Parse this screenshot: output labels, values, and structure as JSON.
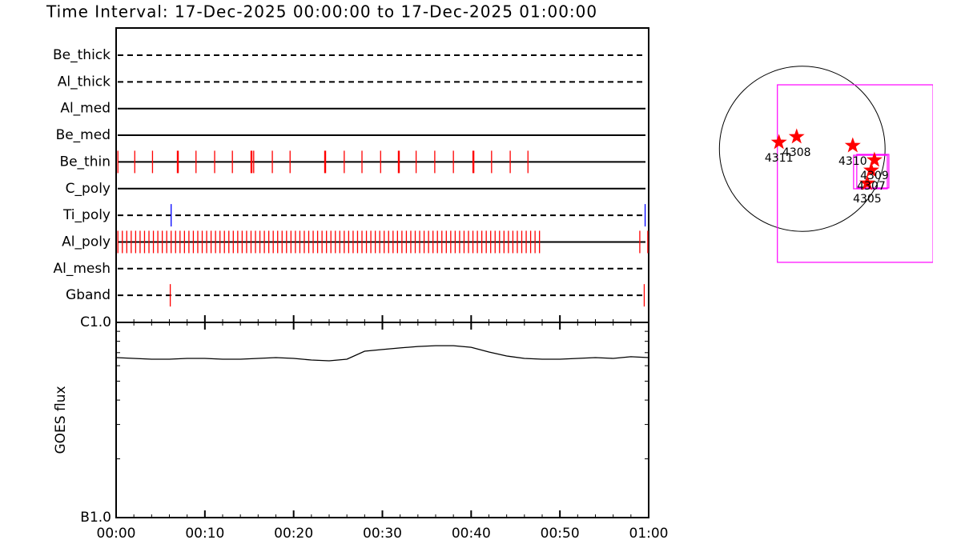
{
  "chart_data": [
    {
      "type": "timeline",
      "title": "Time Interval: 17-Dec-2025 00:00:00 to 17-Dec-2025 01:00:00",
      "xlim": [
        0,
        60
      ],
      "rows": [
        {
          "name": "Be_thick",
          "style": "dashed",
          "color": "#ff0000",
          "events": []
        },
        {
          "name": "Al_thick",
          "style": "dashed",
          "color": "#ff0000",
          "events": []
        },
        {
          "name": "Al_med",
          "style": "solid",
          "color": "#ff0000",
          "events": []
        },
        {
          "name": "Be_med",
          "style": "solid",
          "color": "#ff0000",
          "events": []
        },
        {
          "name": "Be_thin",
          "style": "solid",
          "color": "#ff0000",
          "events": [
            0.2,
            2.1,
            4.1,
            6.9,
            7.0,
            9.0,
            11.1,
            13.1,
            15.2,
            15.3,
            15.5,
            17.6,
            19.6,
            23.5,
            23.6,
            25.7,
            27.7,
            29.8,
            31.8,
            31.9,
            33.8,
            35.9,
            38.0,
            40.2,
            40.3,
            42.3,
            44.4,
            46.4
          ]
        },
        {
          "name": "C_poly",
          "style": "solid",
          "color": "#ff0000",
          "events": []
        },
        {
          "name": "Ti_poly",
          "style": "dashed",
          "color": "#0000ff",
          "events": [
            6.2,
            59.6
          ]
        },
        {
          "name": "Al_poly",
          "style": "solid",
          "color": "#ff0000",
          "events": [
            0.2,
            0.7,
            1.2,
            1.7,
            2.2,
            2.7,
            3.2,
            3.7,
            4.2,
            4.7,
            5.2,
            5.7,
            6.2,
            6.7,
            7.2,
            7.7,
            8.2,
            8.7,
            9.2,
            9.7,
            10.2,
            10.7,
            11.2,
            11.7,
            12.2,
            12.7,
            13.2,
            13.7,
            14.2,
            14.7,
            15.2,
            15.7,
            16.2,
            16.7,
            17.2,
            17.7,
            18.2,
            18.7,
            19.2,
            19.7,
            20.2,
            20.7,
            21.2,
            21.7,
            22.2,
            22.7,
            23.2,
            23.7,
            24.2,
            24.7,
            25.2,
            25.7,
            26.2,
            26.7,
            27.2,
            27.7,
            28.2,
            28.7,
            29.2,
            29.7,
            30.2,
            30.7,
            31.2,
            31.7,
            32.2,
            32.7,
            33.2,
            33.7,
            34.2,
            34.7,
            35.2,
            35.7,
            36.2,
            36.7,
            37.2,
            37.7,
            38.2,
            38.7,
            39.2,
            39.7,
            40.2,
            40.7,
            41.2,
            41.7,
            42.2,
            42.7,
            43.2,
            43.7,
            44.2,
            44.7,
            45.2,
            45.7,
            46.2,
            46.7,
            47.2,
            47.7,
            59.0,
            59.9
          ]
        },
        {
          "name": "Al_mesh",
          "style": "dashed",
          "color": "#ff0000",
          "events": []
        },
        {
          "name": "Gband",
          "style": "dashed",
          "color": "#ff0000",
          "events": [
            6.1,
            59.5
          ]
        }
      ]
    },
    {
      "type": "line",
      "y_label": "GOES flux",
      "log_y": true,
      "color": "#000000",
      "xlim": [
        0,
        60
      ],
      "xticks": [
        {
          "value": 0,
          "label": "00:00"
        },
        {
          "value": 10,
          "label": "00:10"
        },
        {
          "value": 20,
          "label": "00:20"
        },
        {
          "value": 30,
          "label": "00:30"
        },
        {
          "value": 40,
          "label": "00:40"
        },
        {
          "value": 50,
          "label": "00:50"
        },
        {
          "value": 60,
          "label": "01:00"
        }
      ],
      "ylim": [
        1e-07,
        1e-06
      ],
      "yticks": [
        {
          "value": 1e-06,
          "label": "C1.0"
        },
        {
          "value": 1e-07,
          "label": "B1.0"
        }
      ],
      "x": [
        0,
        2,
        4,
        6,
        8,
        10,
        12,
        14,
        16,
        18,
        20,
        22,
        24,
        26,
        28,
        30,
        32,
        34,
        36,
        38,
        40,
        42,
        44,
        46,
        48,
        50,
        52,
        54,
        56,
        58,
        60
      ],
      "values": [
        6.6e-07,
        6.54e-07,
        6.48e-07,
        6.48e-07,
        6.54e-07,
        6.54e-07,
        6.48e-07,
        6.48e-07,
        6.54e-07,
        6.6e-07,
        6.54e-07,
        6.42e-07,
        6.36e-07,
        6.48e-07,
        7.12e-07,
        7.26e-07,
        7.4e-07,
        7.53e-07,
        7.6e-07,
        7.6e-07,
        7.46e-07,
        7.05e-07,
        6.73e-07,
        6.54e-07,
        6.48e-07,
        6.48e-07,
        6.54e-07,
        6.6e-07,
        6.54e-07,
        6.67e-07,
        6.6e-07
      ]
    },
    {
      "type": "map",
      "sun_radius": 960,
      "xlim": [
        -1130,
        1515
      ],
      "ylim": [
        -1544,
        1544
      ],
      "star_color": "#ff0000",
      "fov_color": "#ff00ff",
      "labels": [
        "4311",
        "4308",
        "4310",
        "4309",
        "4307",
        "4305"
      ],
      "x": [
        -270,
        -65,
        585,
        837,
        800,
        753
      ],
      "y": [
        75,
        140,
        37,
        -130,
        -250,
        -400
      ],
      "fovs": [
        {
          "x": [
            -288,
            1516
          ],
          "y": [
            -1320,
            744
          ]
        },
        {
          "x": [
            595,
            986
          ],
          "y": [
            -465,
            -75
          ]
        },
        {
          "x": [
            632,
            1004
          ],
          "y": [
            -455,
            -65
          ]
        }
      ]
    }
  ]
}
